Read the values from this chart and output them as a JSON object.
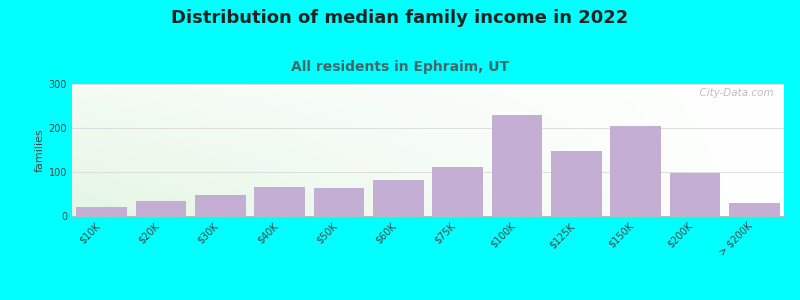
{
  "title": "Distribution of median family income in 2022",
  "subtitle": "All residents in Ephraim, UT",
  "ylabel": "families",
  "background_color": "#00FFFF",
  "bar_color": "#C4AED4",
  "categories": [
    "$10K",
    "$20K",
    "$30K",
    "$40K",
    "$50K",
    "$60K",
    "$75K",
    "$100K",
    "$125K",
    "$150K",
    "$200K",
    "> $200K"
  ],
  "values": [
    20,
    33,
    48,
    65,
    63,
    82,
    112,
    230,
    147,
    205,
    97,
    30
  ],
  "ylim": [
    0,
    300
  ],
  "yticks": [
    0,
    100,
    200,
    300
  ],
  "watermark": "  City-Data.com",
  "title_fontsize": 13,
  "subtitle_fontsize": 10,
  "ylabel_fontsize": 8,
  "tick_fontsize": 7,
  "title_color": "#222222",
  "subtitle_color": "#446666",
  "grid_color": "#dddddd"
}
